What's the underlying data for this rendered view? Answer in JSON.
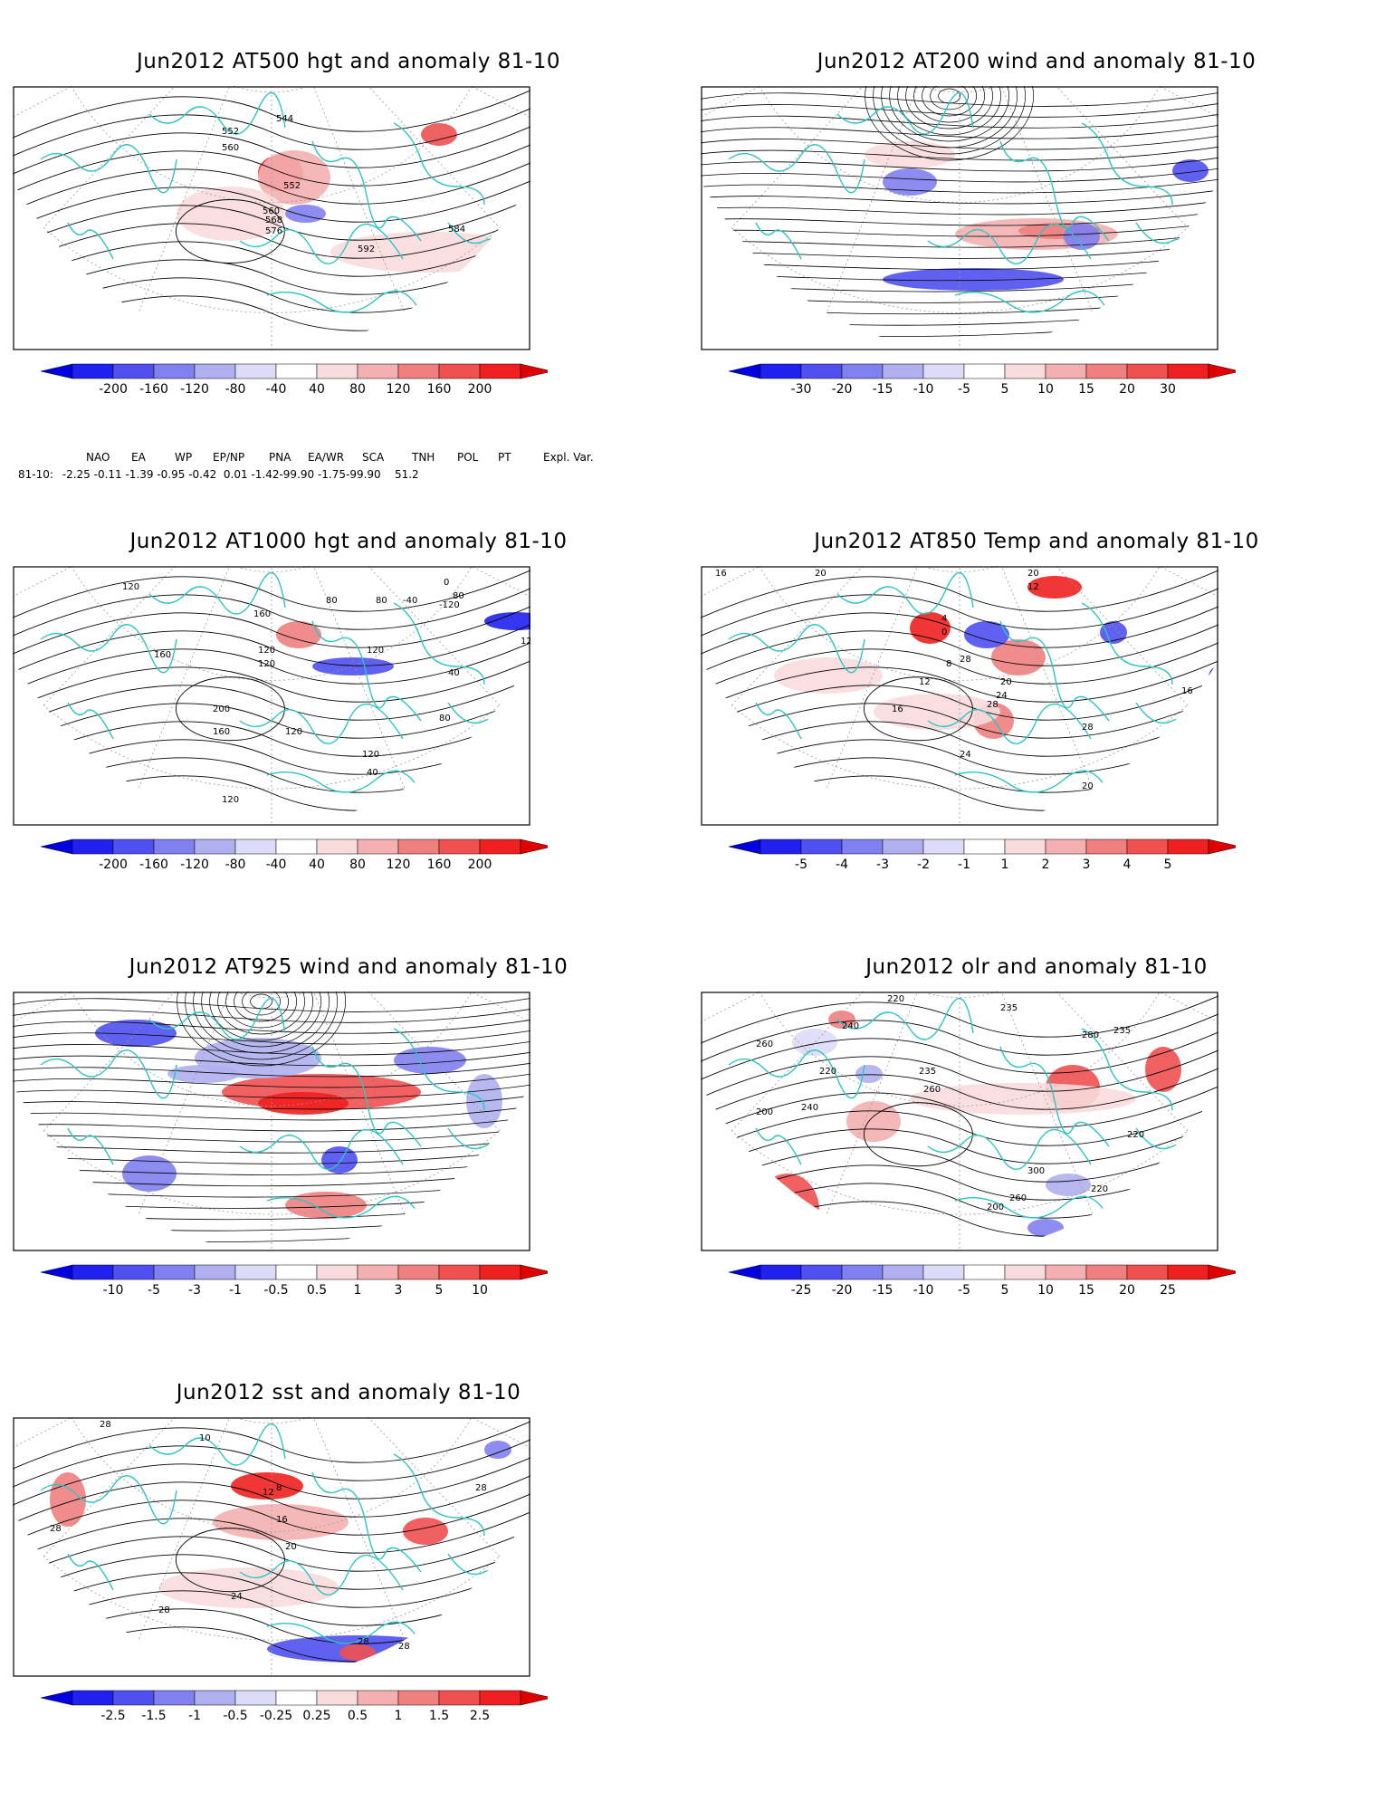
{
  "panels": [
    {
      "id": "p1",
      "title": "Jun2012 AT500 hgt and anomaly 81-10",
      "colorbar": {
        "labels": [
          "-200",
          "-160",
          "-120",
          "-80",
          "-40",
          "40",
          "80",
          "120",
          "160",
          "200"
        ]
      },
      "contour_labels": [
        "544",
        "552",
        "560",
        "552",
        "560",
        "568",
        "576",
        "584",
        "584",
        "592"
      ]
    },
    {
      "id": "p2",
      "title": "Jun2012 AT200 wind and anomaly 81-10",
      "colorbar": {
        "labels": [
          "-30",
          "-20",
          "-15",
          "-10",
          "-5",
          "5",
          "10",
          "15",
          "20",
          "30"
        ]
      },
      "contour_labels": []
    },
    {
      "id": "p3",
      "title": "Jun2012 AT1000 hgt and anomaly 81-10",
      "colorbar": {
        "labels": [
          "-200",
          "-160",
          "-120",
          "-80",
          "-40",
          "40",
          "80",
          "120",
          "160",
          "200"
        ]
      },
      "contour_labels": [
        "120",
        "160",
        "120",
        "120",
        "160",
        "200",
        "160",
        "120",
        "80",
        "80",
        "120",
        "40",
        "-40",
        "0",
        "-120",
        "80",
        "80",
        "120",
        "120",
        "40",
        "120"
      ]
    },
    {
      "id": "p4",
      "title": "Jun2012 AT850 Temp and anomaly 81-10",
      "colorbar": {
        "labels": [
          "-5",
          "-4",
          "-3",
          "-2",
          "-1",
          "1",
          "2",
          "3",
          "4",
          "5"
        ]
      },
      "contour_labels": [
        "16",
        "20",
        "12",
        "20",
        "28",
        "4",
        "0",
        "8",
        "12",
        "16",
        "20",
        "24",
        "28",
        "24",
        "28",
        "20",
        "16"
      ]
    },
    {
      "id": "p5",
      "title": "Jun2012 AT925 wind and anomaly 81-10",
      "colorbar": {
        "labels": [
          "-10",
          "-5",
          "-3",
          "-1",
          "-0.5",
          "0.5",
          "1",
          "3",
          "5",
          "10"
        ]
      },
      "contour_labels": []
    },
    {
      "id": "p6",
      "title": "Jun2012 olr and anomaly 81-10",
      "colorbar": {
        "labels": [
          "-25",
          "-20",
          "-15",
          "-10",
          "-5",
          "5",
          "10",
          "15",
          "20",
          "25"
        ]
      },
      "contour_labels": [
        "260",
        "240",
        "220",
        "235",
        "200",
        "260",
        "240",
        "220",
        "235",
        "280",
        "300",
        "260",
        "235",
        "220",
        "200",
        "220"
      ]
    },
    {
      "id": "p7",
      "title": "Jun2012 sst and anomaly 81-10",
      "colorbar": {
        "labels": [
          "-2.5",
          "-1.5",
          "-1",
          "-0.5",
          "-0.25",
          "0.25",
          "0.5",
          "1",
          "1.5",
          "2.5"
        ]
      },
      "contour_labels": [
        "28",
        "28",
        "10",
        "8",
        "12",
        "16",
        "20",
        "24",
        "28",
        "28",
        "28",
        "28"
      ]
    }
  ],
  "teleconnection": {
    "header": [
      "NAO",
      "EA",
      "WP",
      "EP/NP",
      "PNA",
      "EA/WR",
      "SCA",
      "TNH",
      "POL",
      "PT",
      "Expl. Var."
    ],
    "row_label": "81-10:",
    "values": "-2.25 -0.11 -1.39 -0.95 -0.42  0.01 -1.42-99.90 -1.75-99.90    51.2"
  },
  "colors": {
    "coast": "#2ec4c4",
    "contour": "#000000",
    "blue_scale": [
      "#2020f0",
      "#5050f0",
      "#8080f0",
      "#b0b0f0",
      "#dcdcf8"
    ],
    "red_scale": [
      "#f8dcdc",
      "#f4b0b0",
      "#f08080",
      "#f05050",
      "#f02020"
    ]
  }
}
